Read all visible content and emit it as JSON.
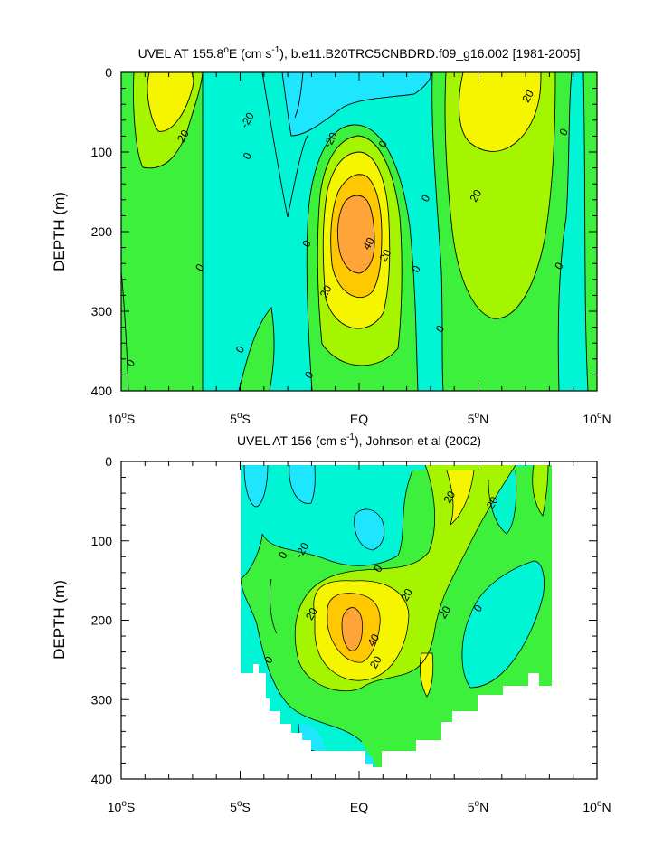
{
  "colors": {
    "lt_neg20": "#1ee6ff",
    "neg20_0": "#00f5d5",
    "0_20": "#3cf03c",
    "20_40": "#a5f500",
    "40_60": "#f5f500",
    "60_80": "#ffc800",
    "gt80": "#ffa538",
    "contour": "#000000"
  },
  "chart_data": [
    {
      "type": "heatmap",
      "title": "UVEL AT 155.8°E (cm s-1), b.e11.B20TRC5CNBDRD.f09_g16.002 [1981-2005]",
      "title_parts": [
        "UVEL AT 155.8",
        "o",
        "E (cm s",
        "-1",
        "), b.e11.B20TRC5CNBDRD.f09_g16.002 [1981-2005]"
      ],
      "xlabel": "",
      "ylabel": "DEPTH (m)",
      "xlim": [
        -10,
        10
      ],
      "ylim": [
        400,
        0
      ],
      "xticks": [
        {
          "v": -10,
          "num": "10",
          "deg": "o",
          "hemi": "S"
        },
        {
          "v": -5,
          "num": "5",
          "deg": "o",
          "hemi": "S"
        },
        {
          "v": 0,
          "num": "EQ",
          "deg": "",
          "hemi": ""
        },
        {
          "v": 5,
          "num": "5",
          "deg": "o",
          "hemi": "N"
        },
        {
          "v": 10,
          "num": "10",
          "deg": "o",
          "hemi": "N"
        }
      ],
      "yticks": [
        0,
        100,
        200,
        300,
        400
      ],
      "contour_interval": 20,
      "contour_labels": [
        {
          "text": "-20",
          "lat": -4.7,
          "depth": 60
        },
        {
          "text": "-20",
          "lat": -1.2,
          "depth": 85
        },
        {
          "text": "20",
          "lat": -7.4,
          "depth": 80
        },
        {
          "text": "0",
          "lat": -4.7,
          "depth": 105
        },
        {
          "text": "0",
          "lat": 1.0,
          "depth": 90
        },
        {
          "text": "0",
          "lat": 2.8,
          "depth": 158
        },
        {
          "text": "0",
          "lat": -2.2,
          "depth": 215
        },
        {
          "text": "0",
          "lat": -6.7,
          "depth": 245
        },
        {
          "text": "0",
          "lat": 2.4,
          "depth": 247
        },
        {
          "text": "0",
          "lat": 8.4,
          "depth": 243
        },
        {
          "text": "0",
          "lat": 3.4,
          "depth": 322
        },
        {
          "text": "0",
          "lat": -5.0,
          "depth": 348
        },
        {
          "text": "0",
          "lat": -2.1,
          "depth": 380
        },
        {
          "text": "0",
          "lat": -9.6,
          "depth": 365
        },
        {
          "text": "0",
          "lat": 8.6,
          "depth": 75
        },
        {
          "text": "20",
          "lat": 7.1,
          "depth": 30
        },
        {
          "text": "20",
          "lat": 4.9,
          "depth": 155
        },
        {
          "text": "20",
          "lat": 1.1,
          "depth": 230
        },
        {
          "text": "20",
          "lat": -1.4,
          "depth": 275
        },
        {
          "text": "40",
          "lat": 0.4,
          "depth": 215
        }
      ]
    },
    {
      "type": "heatmap",
      "title": "UVEL AT 156 (cm s-1), Johnson et al (2002)",
      "title_parts": [
        "UVEL AT 156 (cm s",
        "-1",
        "), Johnson et al (2002)"
      ],
      "xlabel": "",
      "ylabel": "DEPTH (m)",
      "xlim": [
        -10,
        10
      ],
      "ylim": [
        400,
        0
      ],
      "data_extent": {
        "lat": [
          -5,
          8
        ],
        "depth": [
          5,
          350
        ]
      },
      "xticks": [
        {
          "v": -10,
          "num": "10",
          "deg": "o",
          "hemi": "S"
        },
        {
          "v": -5,
          "num": "5",
          "deg": "o",
          "hemi": "S"
        },
        {
          "v": 0,
          "num": "EQ",
          "deg": "",
          "hemi": ""
        },
        {
          "v": 5,
          "num": "5",
          "deg": "o",
          "hemi": "N"
        },
        {
          "v": 10,
          "num": "10",
          "deg": "o",
          "hemi": "N"
        }
      ],
      "yticks": [
        0,
        100,
        200,
        300,
        400
      ],
      "contour_interval": 20,
      "contour_labels": [
        {
          "text": "-20",
          "lat": -2.4,
          "depth": 112
        },
        {
          "text": "0",
          "lat": -3.2,
          "depth": 118
        },
        {
          "text": "0",
          "lat": 0.8,
          "depth": 135
        },
        {
          "text": "0",
          "lat": -3.8,
          "depth": 250
        },
        {
          "text": "0",
          "lat": 5.0,
          "depth": 185
        },
        {
          "text": "20",
          "lat": 3.8,
          "depth": 45
        },
        {
          "text": "20",
          "lat": 5.6,
          "depth": 52
        },
        {
          "text": "20",
          "lat": 2.0,
          "depth": 168
        },
        {
          "text": "20",
          "lat": -2.0,
          "depth": 192
        },
        {
          "text": "20",
          "lat": 3.6,
          "depth": 190
        },
        {
          "text": "20",
          "lat": 0.7,
          "depth": 253
        },
        {
          "text": "40",
          "lat": 0.6,
          "depth": 225
        }
      ]
    }
  ]
}
